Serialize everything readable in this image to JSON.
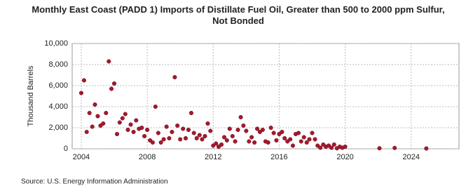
{
  "chart_data": {
    "type": "scatter",
    "title": "Monthly East Coast (PADD 1) Imports of Distillate Fuel Oil, Greater than 500 to 2000 ppm Sulfur, Not Bonded",
    "y_label": "Thousand Barrels",
    "source": "Source: U.S. Energy Information Administration",
    "color": "#a6192e",
    "grid": true,
    "xlim": [
      2003.45,
      2026.9
    ],
    "ylim": [
      0,
      10000
    ],
    "xticks": [
      2004,
      2008,
      2012,
      2016,
      2020,
      2024
    ],
    "yticks": [
      0,
      {
        "value": 2000,
        "label": "2,000"
      },
      {
        "value": 4000,
        "label": "4,000"
      },
      {
        "value": 6000,
        "label": "6,000"
      },
      {
        "value": 8000,
        "label": "8,000"
      },
      {
        "value": 10000,
        "label": "10,000"
      }
    ],
    "x": [
      2004.0,
      2004.17,
      2004.33,
      2004.5,
      2004.67,
      2004.83,
      2005.0,
      2005.17,
      2005.33,
      2005.5,
      2005.67,
      2005.83,
      2006.0,
      2006.17,
      2006.33,
      2006.5,
      2006.67,
      2006.83,
      2007.0,
      2007.17,
      2007.33,
      2007.5,
      2007.67,
      2007.83,
      2008.0,
      2008.17,
      2008.33,
      2008.5,
      2008.67,
      2008.83,
      2009.0,
      2009.17,
      2009.33,
      2009.5,
      2009.67,
      2009.83,
      2010.0,
      2010.17,
      2010.33,
      2010.5,
      2010.67,
      2010.83,
      2011.0,
      2011.17,
      2011.33,
      2011.5,
      2011.67,
      2011.83,
      2012.0,
      2012.17,
      2012.33,
      2012.5,
      2012.67,
      2012.83,
      2013.0,
      2013.17,
      2013.33,
      2013.5,
      2013.67,
      2013.83,
      2014.0,
      2014.17,
      2014.33,
      2014.5,
      2014.67,
      2014.83,
      2015.0,
      2015.17,
      2015.33,
      2015.5,
      2015.67,
      2015.83,
      2016.0,
      2016.17,
      2016.33,
      2016.5,
      2016.67,
      2016.83,
      2017.0,
      2017.17,
      2017.33,
      2017.5,
      2017.67,
      2017.83,
      2018.0,
      2018.17,
      2018.33,
      2018.5,
      2018.67,
      2018.83,
      2019.0,
      2019.17,
      2019.33,
      2019.5,
      2019.67,
      2019.83,
      2020.0,
      2022.08,
      2023.0,
      2024.92
    ],
    "values": [
      5300,
      6500,
      1600,
      3400,
      2100,
      4200,
      3100,
      2200,
      2400,
      3400,
      8300,
      5700,
      6200,
      1400,
      2500,
      2900,
      3300,
      1800,
      2300,
      1600,
      2700,
      1900,
      2000,
      1200,
      1800,
      800,
      600,
      4000,
      1500,
      600,
      900,
      2100,
      1000,
      1600,
      6800,
      2200,
      900,
      1900,
      1000,
      1800,
      3400,
      1500,
      1000,
      1300,
      900,
      1200,
      2400,
      1700,
      300,
      500,
      200,
      400,
      1100,
      800,
      1900,
      1200,
      700,
      1800,
      3000,
      2200,
      1700,
      700,
      1100,
      600,
      1900,
      1600,
      1800,
      700,
      600,
      2000,
      1500,
      800,
      1400,
      1600,
      1000,
      700,
      900,
      300,
      1400,
      1500,
      700,
      1100,
      600,
      900,
      1500,
      900,
      300,
      100,
      400,
      200,
      300,
      100,
      400,
      50,
      200,
      100,
      200,
      50,
      80,
      30
    ]
  }
}
